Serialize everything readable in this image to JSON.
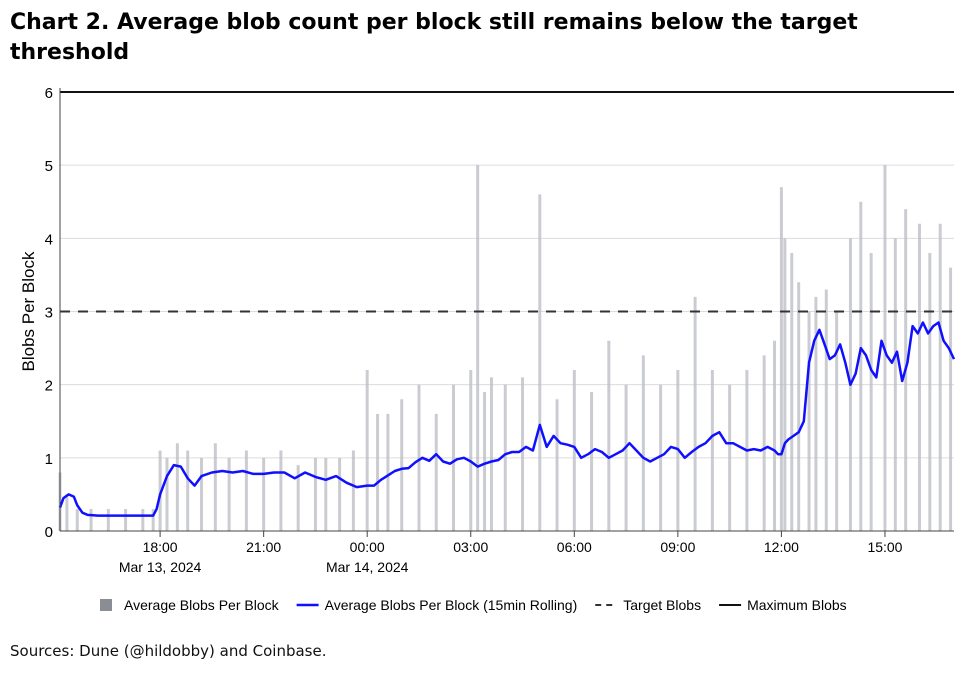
{
  "title": "Chart 2. Average blob count per block still remains below the target threshold",
  "source": "Sources: Dune (@hildobby) and Coinbase.",
  "chart_data": {
    "type": "line",
    "ylabel": "Blobs Per Block",
    "ylim": [
      0,
      6
    ],
    "yticks": [
      "0",
      "1",
      "2",
      "3",
      "4",
      "5",
      "6"
    ],
    "x_range_hours": [
      15.1,
      41.0
    ],
    "xticks": [
      {
        "hour": 18,
        "label": "18:00",
        "date": "Mar 13, 2024"
      },
      {
        "hour": 21,
        "label": "21:00",
        "date": ""
      },
      {
        "hour": 24,
        "label": "00:00",
        "date": "Mar 14, 2024"
      },
      {
        "hour": 27,
        "label": "03:00",
        "date": ""
      },
      {
        "hour": 30,
        "label": "06:00",
        "date": ""
      },
      {
        "hour": 33,
        "label": "09:00",
        "date": ""
      },
      {
        "hour": 36,
        "label": "12:00",
        "date": ""
      },
      {
        "hour": 39,
        "label": "15:00",
        "date": ""
      }
    ],
    "grid": true,
    "legend_position": "bottom",
    "series": [
      {
        "name": "Average Blobs Per Block",
        "kind": "bars",
        "color": "#b9bcc4",
        "x": [
          15.1,
          15.3,
          15.6,
          16.0,
          16.5,
          17.0,
          17.5,
          17.8,
          18.0,
          18.2,
          18.5,
          18.8,
          19.2,
          19.6,
          20.0,
          20.5,
          21.0,
          21.5,
          22.0,
          22.5,
          22.8,
          23.2,
          23.6,
          24.0,
          24.3,
          24.6,
          25.0,
          25.5,
          26.0,
          26.5,
          27.0,
          27.2,
          27.4,
          27.6,
          28.0,
          28.5,
          29.0,
          29.5,
          30.0,
          30.5,
          31.0,
          31.5,
          32.0,
          32.5,
          33.0,
          33.5,
          34.0,
          34.5,
          35.0,
          35.5,
          35.8,
          36.0,
          36.1,
          36.3,
          36.5,
          36.8,
          37.0,
          37.3,
          37.6,
          38.0,
          38.3,
          38.6,
          39.0,
          39.3,
          39.6,
          40.0,
          40.3,
          40.6,
          40.9
        ],
        "y": [
          0.8,
          0.5,
          0.3,
          0.3,
          0.3,
          0.3,
          0.3,
          0.3,
          1.1,
          1.0,
          1.2,
          1.1,
          1.0,
          1.2,
          1.0,
          1.1,
          1.0,
          1.1,
          0.9,
          1.0,
          1.0,
          1.0,
          1.1,
          2.2,
          1.6,
          1.6,
          1.8,
          2.0,
          1.6,
          2.0,
          2.2,
          5.0,
          1.9,
          2.1,
          2.0,
          2.1,
          4.6,
          1.8,
          2.2,
          1.9,
          2.6,
          2.0,
          2.4,
          2.0,
          2.2,
          3.2,
          2.2,
          2.0,
          2.2,
          2.4,
          2.6,
          4.7,
          4.0,
          3.8,
          3.4,
          3.0,
          3.2,
          3.3,
          3.0,
          4.0,
          4.5,
          3.8,
          5.0,
          4.0,
          4.4,
          4.2,
          3.8,
          4.2,
          3.6
        ]
      },
      {
        "name": "Average Blobs Per Block (15min Rolling)",
        "kind": "line",
        "color": "#1010ff",
        "x": [
          15.1,
          15.2,
          15.35,
          15.5,
          15.6,
          15.75,
          15.9,
          16.2,
          16.6,
          17.0,
          17.5,
          17.8,
          17.9,
          18.0,
          18.2,
          18.4,
          18.6,
          18.8,
          19.0,
          19.2,
          19.5,
          19.8,
          20.1,
          20.4,
          20.7,
          21.0,
          21.3,
          21.6,
          21.9,
          22.2,
          22.5,
          22.8,
          23.1,
          23.4,
          23.7,
          24.0,
          24.2,
          24.4,
          24.6,
          24.8,
          25.0,
          25.2,
          25.4,
          25.6,
          25.8,
          26.0,
          26.2,
          26.4,
          26.6,
          26.8,
          27.0,
          27.2,
          27.4,
          27.6,
          27.8,
          28.0,
          28.2,
          28.4,
          28.6,
          28.8,
          29.0,
          29.2,
          29.4,
          29.6,
          29.8,
          30.0,
          30.2,
          30.4,
          30.6,
          30.8,
          31.0,
          31.2,
          31.4,
          31.6,
          31.8,
          32.0,
          32.2,
          32.4,
          32.6,
          32.8,
          33.0,
          33.2,
          33.4,
          33.6,
          33.8,
          34.0,
          34.2,
          34.4,
          34.6,
          34.8,
          35.0,
          35.2,
          35.4,
          35.6,
          35.8,
          35.9,
          36.0,
          36.1,
          36.2,
          36.35,
          36.5,
          36.65,
          36.8,
          36.95,
          37.1,
          37.25,
          37.4,
          37.55,
          37.7,
          37.85,
          38.0,
          38.15,
          38.3,
          38.45,
          38.6,
          38.75,
          38.9,
          39.05,
          39.2,
          39.35,
          39.5,
          39.65,
          39.8,
          39.95,
          40.1,
          40.25,
          40.4,
          40.55,
          40.7,
          40.85,
          41.0
        ],
        "y": [
          0.32,
          0.45,
          0.5,
          0.47,
          0.35,
          0.25,
          0.22,
          0.21,
          0.21,
          0.21,
          0.21,
          0.21,
          0.3,
          0.5,
          0.75,
          0.9,
          0.88,
          0.72,
          0.62,
          0.75,
          0.8,
          0.82,
          0.8,
          0.82,
          0.78,
          0.78,
          0.8,
          0.8,
          0.72,
          0.8,
          0.74,
          0.7,
          0.75,
          0.66,
          0.6,
          0.62,
          0.62,
          0.7,
          0.76,
          0.82,
          0.85,
          0.86,
          0.94,
          1.0,
          0.96,
          1.05,
          0.95,
          0.92,
          0.98,
          1.0,
          0.95,
          0.88,
          0.92,
          0.95,
          0.97,
          1.05,
          1.08,
          1.08,
          1.15,
          1.1,
          1.45,
          1.15,
          1.3,
          1.2,
          1.18,
          1.15,
          1.0,
          1.05,
          1.12,
          1.08,
          1.0,
          1.05,
          1.1,
          1.2,
          1.1,
          1.0,
          0.95,
          1.0,
          1.05,
          1.15,
          1.12,
          1.0,
          1.08,
          1.15,
          1.2,
          1.3,
          1.35,
          1.2,
          1.2,
          1.15,
          1.1,
          1.12,
          1.1,
          1.15,
          1.1,
          1.05,
          1.05,
          1.2,
          1.25,
          1.3,
          1.35,
          1.5,
          2.3,
          2.6,
          2.75,
          2.55,
          2.35,
          2.4,
          2.55,
          2.3,
          2.0,
          2.15,
          2.5,
          2.4,
          2.2,
          2.1,
          2.6,
          2.4,
          2.3,
          2.45,
          2.05,
          2.3,
          2.8,
          2.7,
          2.85,
          2.7,
          2.8,
          2.85,
          2.6,
          2.5,
          2.35
        ]
      },
      {
        "name": "Target Blobs",
        "kind": "dashed",
        "color": "#333333",
        "value": 3
      },
      {
        "name": "Maximum Blobs",
        "kind": "solid",
        "color": "#111111",
        "value": 6
      }
    ]
  }
}
